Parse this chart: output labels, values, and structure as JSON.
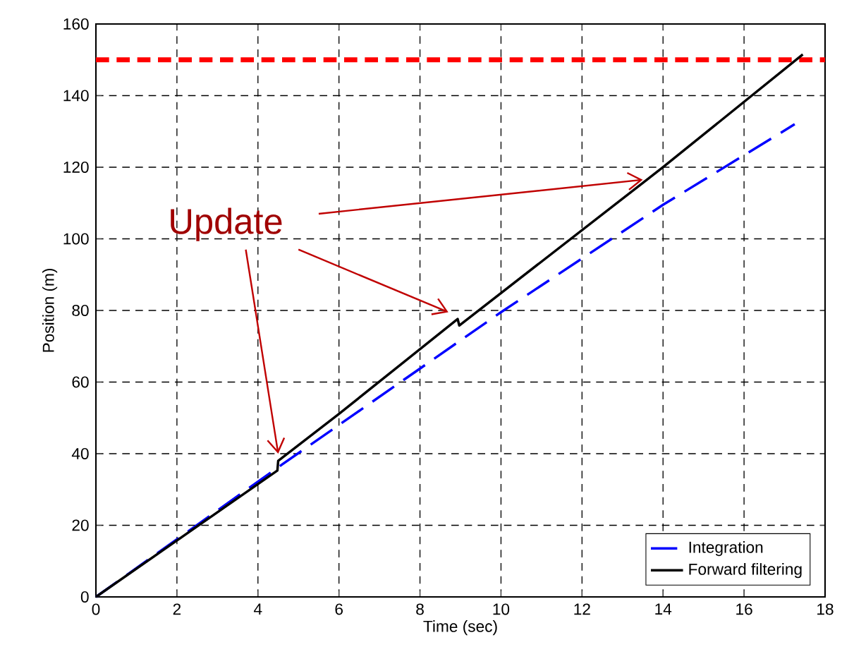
{
  "chart_data": {
    "type": "line",
    "xlabel": "Time (sec)",
    "ylabel": "Position (m)",
    "xlim": [
      0,
      18
    ],
    "xticks": [
      0,
      2,
      4,
      6,
      8,
      10,
      12,
      14,
      16,
      18
    ],
    "ylim": [
      0,
      160
    ],
    "yticks": [
      0,
      20,
      40,
      60,
      80,
      100,
      120,
      140,
      160
    ],
    "grid": true,
    "legend": "bottom right",
    "series": [
      {
        "name": "Integration",
        "color": "#0000ff",
        "line_style": "dashed",
        "x": [
          0,
          4.6,
          10,
          14,
          17.25
        ],
        "values": [
          0,
          37,
          79.5,
          109.5,
          132
        ]
      },
      {
        "name": "Forward filtering",
        "color": "#000000",
        "line_style": "solid",
        "x": [
          0,
          4.48,
          4.5,
          6,
          8.93,
          8.97,
          14,
          17.45
        ],
        "values": [
          0,
          35.3,
          38,
          51.1,
          77.6,
          75.8,
          120,
          151.5
        ]
      }
    ],
    "ref_lines": [
      {
        "axis": "y",
        "value": 150,
        "color": "#ff0000",
        "line_style": "dashed"
      }
    ],
    "annotations": [
      "Update"
    ]
  }
}
